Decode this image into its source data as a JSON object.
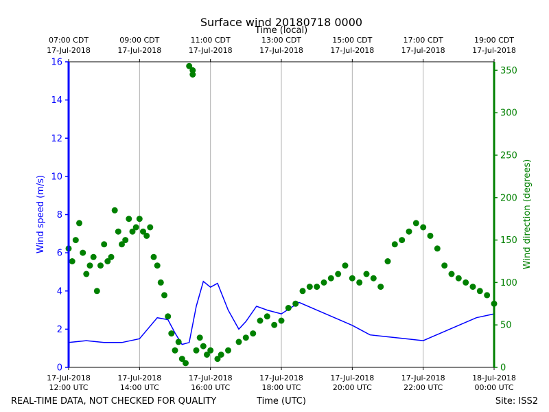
{
  "chart_data": {
    "type": "scatter",
    "title": "Surface wind 20180718 0000",
    "top_xlabel": "Time (local)",
    "xlabel": "Time (UTC)",
    "ylabel_left": "Wind speed (m/s)",
    "ylabel_right": "Wind direction (degrees)",
    "footer_left": "REAL-TIME DATA, NOT CHECKED FOR QUALITY",
    "footer_right": "Site: ISS2",
    "xlim_hours": [
      12,
      24
    ],
    "ylim_left": [
      0,
      16
    ],
    "ylim_right": [
      0,
      360
    ],
    "grid": "vertical at 2-hour ticks",
    "colors": {
      "speed": "#0000ff",
      "direction": "#008000",
      "grid": "#b0b0b0",
      "axes": "#000000"
    },
    "bottom_ticks": [
      {
        "hour": 12,
        "line1": "17-Jul-2018",
        "line2": "12:00 UTC"
      },
      {
        "hour": 14,
        "line1": "17-Jul-2018",
        "line2": "14:00 UTC"
      },
      {
        "hour": 16,
        "line1": "17-Jul-2018",
        "line2": "16:00 UTC"
      },
      {
        "hour": 18,
        "line1": "17-Jul-2018",
        "line2": "18:00 UTC"
      },
      {
        "hour": 20,
        "line1": "17-Jul-2018",
        "line2": "20:00 UTC"
      },
      {
        "hour": 22,
        "line1": "17-Jul-2018",
        "line2": "22:00 UTC"
      },
      {
        "hour": 24,
        "line1": "18-Jul-2018",
        "line2": "00:00 UTC"
      }
    ],
    "top_ticks": [
      {
        "hour": 12,
        "line1": "07:00 CDT",
        "line2": "17-Jul-2018"
      },
      {
        "hour": 14,
        "line1": "09:00 CDT",
        "line2": "17-Jul-2018"
      },
      {
        "hour": 16,
        "line1": "11:00 CDT",
        "line2": "17-Jul-2018"
      },
      {
        "hour": 18,
        "line1": "13:00 CDT",
        "line2": "17-Jul-2018"
      },
      {
        "hour": 20,
        "line1": "15:00 CDT",
        "line2": "17-Jul-2018"
      },
      {
        "hour": 22,
        "line1": "17:00 CDT",
        "line2": "17-Jul-2018"
      },
      {
        "hour": 24,
        "line1": "19:00 CDT",
        "line2": "17-Jul-2018"
      }
    ],
    "left_ticks": [
      0,
      2,
      4,
      6,
      8,
      10,
      12,
      14,
      16
    ],
    "right_ticks": [
      0,
      50,
      100,
      150,
      200,
      250,
      300,
      350
    ],
    "series": [
      {
        "name": "Wind speed",
        "axis": "left",
        "style": "line",
        "x": [
          12.0,
          12.5,
          13.0,
          13.5,
          14.0,
          14.5,
          14.8,
          15.0,
          15.2,
          15.4,
          15.6,
          15.8,
          16.0,
          16.2,
          16.5,
          16.8,
          17.0,
          17.3,
          17.6,
          18.0,
          18.5,
          19.0,
          19.5,
          20.0,
          20.5,
          21.0,
          21.5,
          22.0,
          22.5,
          23.0,
          23.5,
          24.0
        ],
        "values": [
          1.3,
          1.4,
          1.3,
          1.3,
          1.5,
          2.6,
          2.5,
          1.8,
          1.2,
          1.3,
          3.2,
          4.5,
          4.2,
          4.4,
          3.0,
          2.0,
          2.4,
          3.2,
          3.0,
          2.8,
          3.4,
          3.0,
          2.6,
          2.2,
          1.7,
          1.6,
          1.5,
          1.4,
          1.8,
          2.2,
          2.6,
          2.8
        ]
      },
      {
        "name": "Wind direction",
        "axis": "right",
        "style": "markers",
        "x": [
          12.0,
          12.1,
          12.2,
          12.3,
          12.4,
          12.5,
          12.6,
          12.7,
          12.8,
          12.9,
          13.0,
          13.1,
          13.2,
          13.3,
          13.4,
          13.5,
          13.6,
          13.7,
          13.8,
          13.9,
          14.0,
          14.1,
          14.2,
          14.3,
          14.4,
          14.5,
          14.6,
          14.7,
          14.8,
          14.9,
          15.0,
          15.1,
          15.2,
          15.3,
          15.4,
          15.5,
          15.5,
          15.6,
          15.7,
          15.8,
          15.9,
          16.0,
          16.2,
          16.3,
          16.5,
          16.8,
          17.0,
          17.2,
          17.4,
          17.6,
          17.8,
          18.0,
          18.2,
          18.4,
          18.6,
          18.8,
          19.0,
          19.2,
          19.4,
          19.6,
          19.8,
          20.0,
          20.2,
          20.4,
          20.6,
          20.8,
          21.0,
          21.2,
          21.4,
          21.6,
          21.8,
          22.0,
          22.2,
          22.4,
          22.6,
          22.8,
          23.0,
          23.2,
          23.4,
          23.6,
          23.8,
          24.0
        ],
        "values": [
          140,
          125,
          150,
          170,
          135,
          110,
          120,
          130,
          90,
          120,
          145,
          125,
          130,
          185,
          160,
          145,
          150,
          175,
          160,
          165,
          175,
          160,
          155,
          165,
          130,
          120,
          100,
          85,
          60,
          40,
          20,
          30,
          10,
          5,
          355,
          350,
          345,
          20,
          35,
          25,
          15,
          20,
          10,
          15,
          20,
          30,
          35,
          40,
          55,
          60,
          50,
          55,
          70,
          75,
          90,
          95,
          95,
          100,
          105,
          110,
          120,
          105,
          100,
          110,
          105,
          95,
          125,
          145,
          150,
          160,
          170,
          165,
          155,
          140,
          120,
          110,
          105,
          100,
          95,
          90,
          85,
          75
        ]
      }
    ]
  }
}
